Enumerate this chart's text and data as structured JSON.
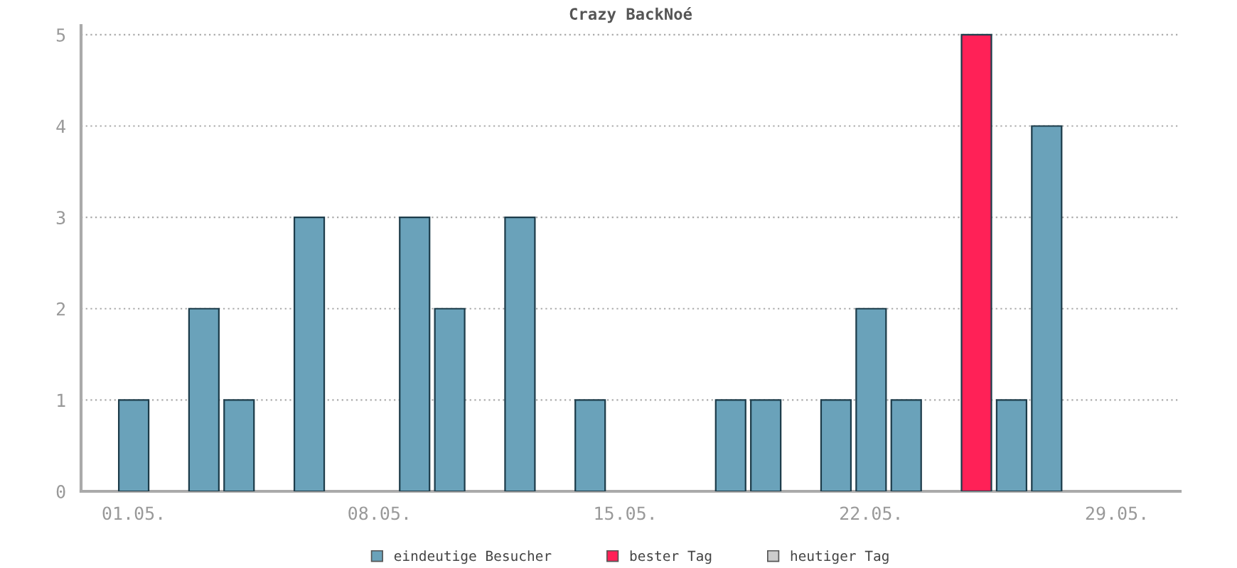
{
  "chart_data": {
    "type": "bar",
    "title": "Crazy BackNoé",
    "categories": [
      "01.05.",
      null,
      null,
      null,
      null,
      null,
      null,
      "08.05.",
      null,
      null,
      null,
      null,
      null,
      null,
      "15.05.",
      null,
      null,
      null,
      null,
      null,
      null,
      "22.05.",
      null,
      null,
      null,
      null,
      null,
      null,
      "29.05.",
      null,
      null
    ],
    "series": [
      {
        "name": "eindeutige Besucher",
        "color": "#6aa2ba",
        "values": [
          1,
          0,
          2,
          1,
          0,
          3,
          0,
          0,
          3,
          2,
          0,
          3,
          0,
          1,
          0,
          0,
          0,
          1,
          1,
          0,
          1,
          2,
          1,
          0,
          null,
          1,
          4,
          0,
          0,
          0,
          0
        ]
      },
      {
        "name": "bester Tag",
        "color": "#ff2157",
        "values": [
          null,
          null,
          null,
          null,
          null,
          null,
          null,
          null,
          null,
          null,
          null,
          null,
          null,
          null,
          null,
          null,
          null,
          null,
          null,
          null,
          null,
          null,
          null,
          null,
          5,
          null,
          null,
          null,
          null,
          null,
          null
        ]
      },
      {
        "name": "heutiger Tag",
        "color": "#cccccc",
        "values": [
          null,
          null,
          null,
          null,
          null,
          null,
          null,
          null,
          null,
          null,
          null,
          null,
          null,
          null,
          null,
          null,
          null,
          null,
          null,
          null,
          null,
          null,
          null,
          null,
          null,
          null,
          null,
          null,
          null,
          null,
          null
        ]
      }
    ],
    "ylim": [
      0,
      5.1
    ],
    "yticks": [
      0,
      1,
      2,
      3,
      4,
      5
    ],
    "grid": "y",
    "legend": "bottom"
  }
}
